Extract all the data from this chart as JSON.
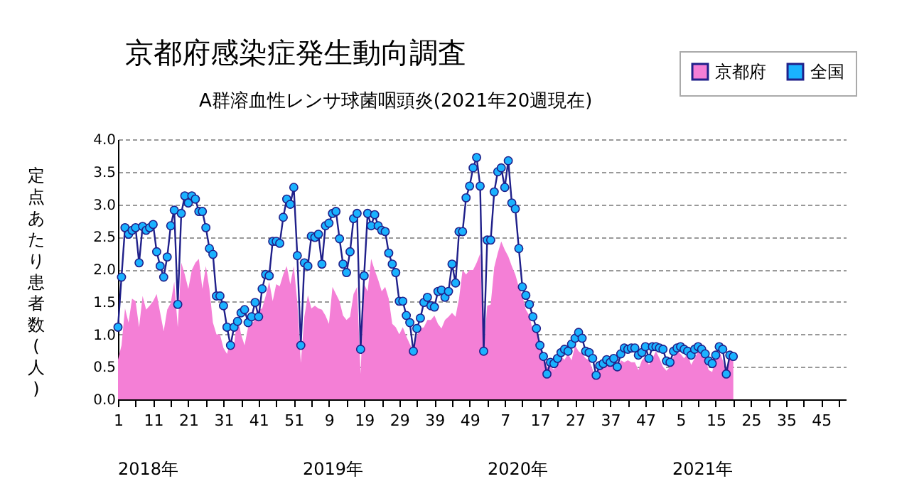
{
  "chart_data": {
    "type": "line",
    "title": "京都府感染症発生動向調査",
    "subtitle": "A群溶血性レンサ球菌咽頭炎(2021年20週現在)",
    "ylabel": "定点あたり患者数(人)",
    "categories": [
      "1",
      null,
      null,
      null,
      null,
      null,
      null,
      null,
      null,
      null,
      "11",
      null,
      null,
      null,
      null,
      null,
      null,
      null,
      null,
      null,
      "21",
      null,
      null,
      null,
      null,
      null,
      null,
      null,
      null,
      null,
      "31",
      null,
      null,
      null,
      null,
      null,
      null,
      null,
      null,
      null,
      "41",
      null,
      null,
      null,
      null,
      null,
      null,
      null,
      null,
      null,
      "51",
      null,
      null,
      null,
      null,
      null,
      null,
      null,
      null,
      null,
      "9",
      null,
      null,
      null,
      null,
      null,
      null,
      null,
      null,
      null,
      "19",
      null,
      null,
      null,
      null,
      null,
      null,
      null,
      null,
      null,
      "29",
      null,
      null,
      null,
      null,
      null,
      null,
      null,
      null,
      null,
      "39",
      null,
      null,
      null,
      null,
      null,
      null,
      null,
      null,
      null,
      "49",
      null,
      null,
      null,
      null,
      null,
      null,
      null,
      null,
      null,
      "7",
      null,
      null,
      null,
      null,
      null,
      null,
      null,
      null,
      null,
      "17",
      null,
      null,
      null,
      null,
      null,
      null,
      null,
      null,
      null,
      "27",
      null,
      null,
      null,
      null,
      null,
      null,
      null,
      null,
      null,
      "37",
      null,
      null,
      null,
      null,
      null,
      null,
      null,
      null,
      null,
      "47",
      null,
      null,
      null,
      null,
      null,
      null,
      null,
      null,
      null,
      "5",
      null,
      null,
      null,
      null,
      null,
      null,
      null,
      null,
      null,
      "15",
      null,
      null,
      null,
      null,
      null,
      null,
      null,
      null,
      null,
      "25",
      null,
      null,
      null,
      null,
      null,
      null,
      null,
      null,
      null,
      "35",
      null,
      null,
      null,
      null,
      null,
      null,
      null,
      null,
      null,
      "45",
      null,
      null,
      null,
      null,
      null,
      null,
      null
    ],
    "series": [
      {
        "name": "京都府",
        "type": "area",
        "color": "#f47fd6",
        "values": [
          0.61,
          0.83,
          1.4,
          1.18,
          1.55,
          1.51,
          1.11,
          1.59,
          1.38,
          1.44,
          1.51,
          1.62,
          1.33,
          1.05,
          1.38,
          1.48,
          1.81,
          1.11,
          2.1,
          1.92,
          1.7,
          1.99,
          2.1,
          2.16,
          1.7,
          2.05,
          1.7,
          1.18,
          1.0,
          1.0,
          0.79,
          0.7,
          0.9,
          0.83,
          1.29,
          1.0,
          0.83,
          1.11,
          1.16,
          1.22,
          1.38,
          1.4,
          1.59,
          1.81,
          1.51,
          1.77,
          1.74,
          1.92,
          2.05,
          1.77,
          2.05,
          1.5,
          0.56,
          1.27,
          1.6,
          1.4,
          1.44,
          1.4,
          1.38,
          1.29,
          1.16,
          1.73,
          1.62,
          1.51,
          1.29,
          1.22,
          1.27,
          1.62,
          1.73,
          0.39,
          1.77,
          1.66,
          2.16,
          1.99,
          1.84,
          1.66,
          1.73,
          1.55,
          1.16,
          1.11,
          1.0,
          1.11,
          0.97,
          0.85,
          0.74,
          0.97,
          1.09,
          1.11,
          1.22,
          1.22,
          1.29,
          1.16,
          1.09,
          1.22,
          1.27,
          1.33,
          1.27,
          1.55,
          1.99,
          1.92,
          1.99,
          1.99,
          2.1,
          2.24,
          0.74,
          1.44,
          1.46,
          2.03,
          2.25,
          2.43,
          2.3,
          2.2,
          2.05,
          1.92,
          1.73,
          1.6,
          1.38,
          1.29,
          1.05,
          1.11,
          0.85,
          0.7,
          0.5,
          0.5,
          0.46,
          0.57,
          0.66,
          0.61,
          0.7,
          0.6,
          0.83,
          0.74,
          0.7,
          0.63,
          0.6,
          0.46,
          0.31,
          0.5,
          0.53,
          0.57,
          0.53,
          0.6,
          0.45,
          0.6,
          0.57,
          0.6,
          0.57,
          0.57,
          0.45,
          0.6,
          0.66,
          0.53,
          0.63,
          0.74,
          0.63,
          0.5,
          0.44,
          0.5,
          0.66,
          0.74,
          0.7,
          0.63,
          0.7,
          0.53,
          0.63,
          0.74,
          0.74,
          0.63,
          0.45,
          0.42,
          0.66,
          0.74,
          0.6,
          0.39,
          0.68,
          0.66,
          null,
          null,
          null,
          null,
          null,
          null,
          null,
          null,
          null,
          null,
          null,
          null,
          null,
          null,
          null,
          null,
          null,
          null,
          null,
          null,
          null,
          null,
          null,
          null,
          null,
          null,
          null,
          null,
          null,
          null,
          null,
          null
        ]
      },
      {
        "name": "全国",
        "type": "line",
        "marker": "circle",
        "color": "#1ab2ff",
        "values": [
          1.11,
          1.88,
          2.64,
          2.54,
          2.6,
          2.64,
          2.1,
          2.66,
          2.6,
          2.64,
          2.69,
          2.27,
          2.05,
          1.88,
          2.19,
          2.67,
          2.91,
          1.46,
          2.86,
          3.13,
          3.02,
          3.13,
          3.08,
          2.89,
          2.89,
          2.64,
          2.32,
          2.23,
          1.59,
          1.59,
          1.44,
          1.11,
          0.83,
          1.11,
          1.2,
          1.33,
          1.38,
          1.18,
          1.27,
          1.49,
          1.27,
          1.7,
          1.92,
          1.9,
          2.43,
          2.43,
          2.4,
          2.8,
          3.08,
          3.0,
          3.26,
          2.21,
          0.83,
          2.1,
          2.05,
          2.51,
          2.49,
          2.54,
          2.08,
          2.67,
          2.71,
          2.86,
          2.89,
          2.47,
          2.08,
          1.95,
          2.27,
          2.78,
          2.86,
          0.77,
          1.9,
          2.86,
          2.67,
          2.84,
          2.67,
          2.6,
          2.58,
          2.25,
          2.08,
          1.95,
          1.51,
          1.51,
          1.29,
          1.18,
          0.74,
          1.09,
          1.25,
          1.49,
          1.57,
          1.44,
          1.42,
          1.66,
          1.68,
          1.57,
          1.66,
          2.08,
          1.79,
          2.58,
          2.58,
          3.1,
          3.28,
          3.56,
          3.72,
          3.28,
          0.74,
          2.45,
          2.45,
          3.19,
          3.5,
          3.56,
          3.26,
          3.67,
          3.02,
          2.93,
          2.32,
          1.73,
          1.6,
          1.46,
          1.27,
          1.09,
          0.83,
          0.66,
          0.39,
          0.57,
          0.55,
          0.63,
          0.72,
          0.77,
          0.74,
          0.85,
          0.94,
          1.03,
          0.94,
          0.74,
          0.72,
          0.63,
          0.37,
          0.52,
          0.55,
          0.61,
          0.57,
          0.63,
          0.5,
          0.7,
          0.79,
          0.77,
          0.79,
          0.79,
          0.68,
          0.72,
          0.81,
          0.63,
          0.81,
          0.81,
          0.79,
          0.77,
          0.59,
          0.57,
          0.74,
          0.79,
          0.81,
          0.77,
          0.74,
          0.68,
          0.77,
          0.81,
          0.77,
          0.7,
          0.59,
          0.55,
          0.68,
          0.81,
          0.77,
          0.39,
          0.68,
          0.66,
          null,
          null,
          null,
          null,
          null,
          null,
          null,
          null,
          null,
          null,
          null,
          null,
          null,
          null,
          null,
          null,
          null,
          null,
          null,
          null,
          null,
          null,
          null,
          null,
          null,
          null,
          null,
          null,
          null,
          null,
          null,
          null
        ]
      }
    ],
    "ylim": [
      0,
      4
    ],
    "yticks": [
      {
        "value": 0,
        "label": "0.0"
      },
      {
        "value": 0.5,
        "label": "0.5"
      },
      {
        "value": 1,
        "label": "1.0"
      },
      {
        "value": 1.5,
        "label": "1.5"
      },
      {
        "value": 2,
        "label": "2.0"
      },
      {
        "value": 2.5,
        "label": "2.5"
      },
      {
        "value": 3,
        "label": "3.0"
      },
      {
        "value": 3.5,
        "label": "3.5"
      },
      {
        "value": 4,
        "label": "4.0"
      }
    ],
    "grid": "y",
    "legend": "top right",
    "annotations": [
      "2018年",
      "2019年",
      "2020年",
      "2021年"
    ]
  }
}
